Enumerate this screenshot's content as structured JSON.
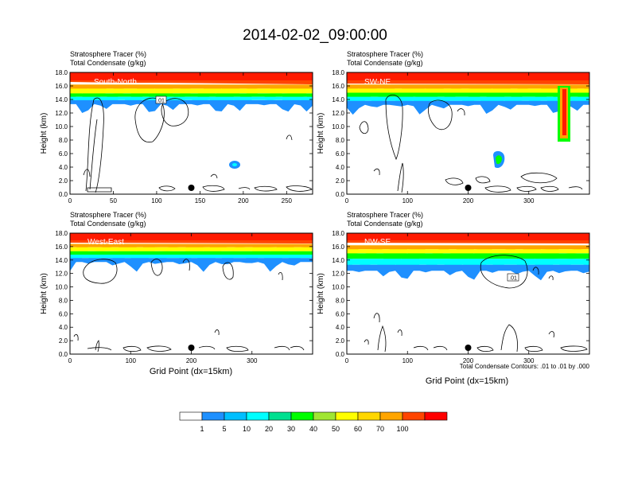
{
  "figure_title": "2014-02-02_09:00:00",
  "footnote": "Total Condensate Contours: .01 to .01 by .000",
  "chart_data": [
    {
      "type": "heatmap",
      "panel_label": "South-North",
      "title_line1": "Stratosphere Tracer   (%)",
      "title_line2": "Total Condensate   (g/kg)",
      "xlabel": "",
      "ylabel": "Height (km)",
      "xlim": [
        0,
        280
      ],
      "ylim": [
        0,
        18
      ],
      "xticks": [
        0,
        50,
        100,
        150,
        200,
        250
      ],
      "yticks": [
        "0.0",
        "2.0",
        "4.0",
        "6.0",
        "8.0",
        "10.0",
        "12.0",
        "14.0",
        "16.0",
        "18.0"
      ],
      "marker_x": 140,
      "tracer_layers_km": [
        [
          15.6,
          16.2
        ],
        [
          14.9,
          15.6
        ],
        [
          14.4,
          14.9
        ],
        [
          13.9,
          14.4
        ],
        [
          13.3,
          13.9
        ]
      ],
      "contour_label": ".01"
    },
    {
      "type": "heatmap",
      "panel_label": "SW-NE",
      "title_line1": "Stratosphere Tracer   (%)",
      "title_line2": "Total Condensate   (g/kg)",
      "xlabel": "",
      "ylabel": "Height (km)",
      "xlim": [
        0,
        400
      ],
      "ylim": [
        0,
        18
      ],
      "xticks": [
        0,
        100,
        200,
        300
      ],
      "yticks": [
        "0.0",
        "2.0",
        "4.0",
        "6.0",
        "8.0",
        "10.0",
        "12.0",
        "14.0",
        "16.0",
        "18.0"
      ],
      "marker_x": 200,
      "tracer_layers_km": [
        [
          15.6,
          16.2
        ],
        [
          15.0,
          15.6
        ],
        [
          14.4,
          15.0
        ],
        [
          13.8,
          14.4
        ],
        [
          13.2,
          13.8
        ]
      ],
      "contour_label": ""
    },
    {
      "type": "heatmap",
      "panel_label": "West-East",
      "title_line1": "Stratosphere Tracer   (%)",
      "title_line2": "Total Condensate   (g/kg)",
      "xlabel": "Grid Point (dx=15km)",
      "ylabel": "Height (km)",
      "xlim": [
        0,
        400
      ],
      "ylim": [
        0,
        18
      ],
      "xticks": [
        0,
        100,
        200,
        300
      ],
      "yticks": [
        "0.0",
        "2.0",
        "4.0",
        "6.0",
        "8.0",
        "10.0",
        "12.0",
        "14.0",
        "16.0",
        "18.0"
      ],
      "marker_x": 200,
      "tracer_layers_km": [
        [
          15.9,
          16.4
        ],
        [
          15.3,
          15.9
        ],
        [
          14.8,
          15.3
        ],
        [
          14.3,
          14.8
        ],
        [
          13.7,
          14.3
        ]
      ],
      "contour_label": ""
    },
    {
      "type": "heatmap",
      "panel_label": "NW-SE",
      "title_line1": "Stratosphere Tracer   (%)",
      "title_line2": "Total Condensate   (g/kg)",
      "xlabel": "Grid Point (dx=15km)",
      "ylabel": "Height (km)",
      "xlim": [
        0,
        400
      ],
      "ylim": [
        0,
        18
      ],
      "xticks": [
        0,
        100,
        200,
        300
      ],
      "yticks": [
        "0.0",
        "2.0",
        "4.0",
        "6.0",
        "8.0",
        "10.0",
        "12.0",
        "14.0",
        "16.0",
        "18.0"
      ],
      "marker_x": 200,
      "tracer_layers_km": [
        [
          15.6,
          16.2
        ],
        [
          15.0,
          15.6
        ],
        [
          14.2,
          15.0
        ],
        [
          13.3,
          14.2
        ],
        [
          12.4,
          13.3
        ]
      ],
      "contour_label": ".01"
    }
  ],
  "colorbar": {
    "labels": [
      "1",
      "5",
      "10",
      "20",
      "30",
      "40",
      "50",
      "60",
      "70",
      "100"
    ],
    "colors": [
      "#ffffff",
      "#1e90ff",
      "#00bfff",
      "#00ffff",
      "#00e090",
      "#00ff00",
      "#a0e632",
      "#ffff00",
      "#ffd700",
      "#ffa500",
      "#ff4500",
      "#ff0000"
    ]
  }
}
